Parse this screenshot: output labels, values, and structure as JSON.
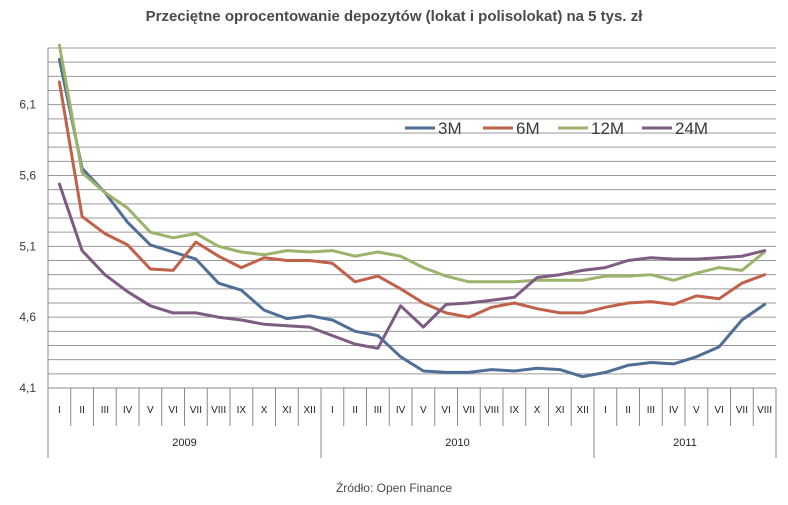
{
  "chart_data": {
    "type": "line",
    "title": "Przeciętne oprocentowanie depozytów (lokat i polisolokat) na 5 tys. zł",
    "source": "Źródło: Open Finance",
    "ylim": [
      4.1,
      6.5
    ],
    "yticks": [
      "4,1",
      "4,6",
      "5,1",
      "5,6",
      "6,1"
    ],
    "ytick_values": [
      4.1,
      4.6,
      5.1,
      5.6,
      6.1
    ],
    "grid": true,
    "legend_position": "top-right",
    "categories": [
      "I",
      "II",
      "III",
      "IV",
      "V",
      "VI",
      "VII",
      "VIII",
      "IX",
      "X",
      "XI",
      "XII",
      "I",
      "II",
      "III",
      "IV",
      "V",
      "VI",
      "VII",
      "VIII",
      "IX",
      "X",
      "XI",
      "XII",
      "I",
      "II",
      "III",
      "IV",
      "V",
      "VI",
      "VII",
      "VIII"
    ],
    "years": [
      {
        "label": "2009",
        "start": 0,
        "end": 12
      },
      {
        "label": "2010",
        "start": 12,
        "end": 24
      },
      {
        "label": "2011",
        "start": 24,
        "end": 32
      }
    ],
    "series": [
      {
        "name": "3M",
        "color": "#4f6f97",
        "values": [
          6.42,
          5.65,
          5.48,
          5.27,
          5.11,
          5.06,
          5.01,
          4.84,
          4.79,
          4.65,
          4.59,
          4.61,
          4.58,
          4.5,
          4.47,
          4.32,
          4.22,
          4.21,
          4.21,
          4.23,
          4.22,
          4.24,
          4.23,
          4.18,
          4.21,
          4.26,
          4.28,
          4.27,
          4.32,
          4.39,
          4.58,
          4.69
        ]
      },
      {
        "name": "6M",
        "color": "#c0614a",
        "values": [
          6.26,
          5.31,
          5.19,
          5.11,
          4.94,
          4.93,
          5.13,
          5.03,
          4.95,
          5.02,
          5.0,
          5.0,
          4.98,
          4.85,
          4.89,
          4.8,
          4.7,
          4.63,
          4.6,
          4.67,
          4.7,
          4.66,
          4.63,
          4.63,
          4.67,
          4.7,
          4.71,
          4.69,
          4.75,
          4.73,
          4.84,
          4.9
        ]
      },
      {
        "name": "12M",
        "color": "#9bb36a",
        "values": [
          6.52,
          5.62,
          5.48,
          5.37,
          5.2,
          5.16,
          5.19,
          5.1,
          5.06,
          5.04,
          5.07,
          5.06,
          5.07,
          5.03,
          5.06,
          5.03,
          4.95,
          4.89,
          4.85,
          4.85,
          4.85,
          4.86,
          4.86,
          4.86,
          4.89,
          4.89,
          4.9,
          4.86,
          4.91,
          4.95,
          4.93,
          5.06
        ]
      },
      {
        "name": "24M",
        "color": "#7e5b83",
        "values": [
          5.54,
          5.07,
          4.9,
          4.78,
          4.68,
          4.63,
          4.63,
          4.6,
          4.58,
          4.55,
          4.54,
          4.53,
          4.47,
          4.41,
          4.38,
          4.68,
          4.53,
          4.69,
          4.7,
          4.72,
          4.74,
          4.88,
          4.9,
          4.93,
          4.95,
          5.0,
          5.02,
          5.01,
          5.01,
          5.02,
          5.03,
          5.07
        ]
      }
    ]
  }
}
